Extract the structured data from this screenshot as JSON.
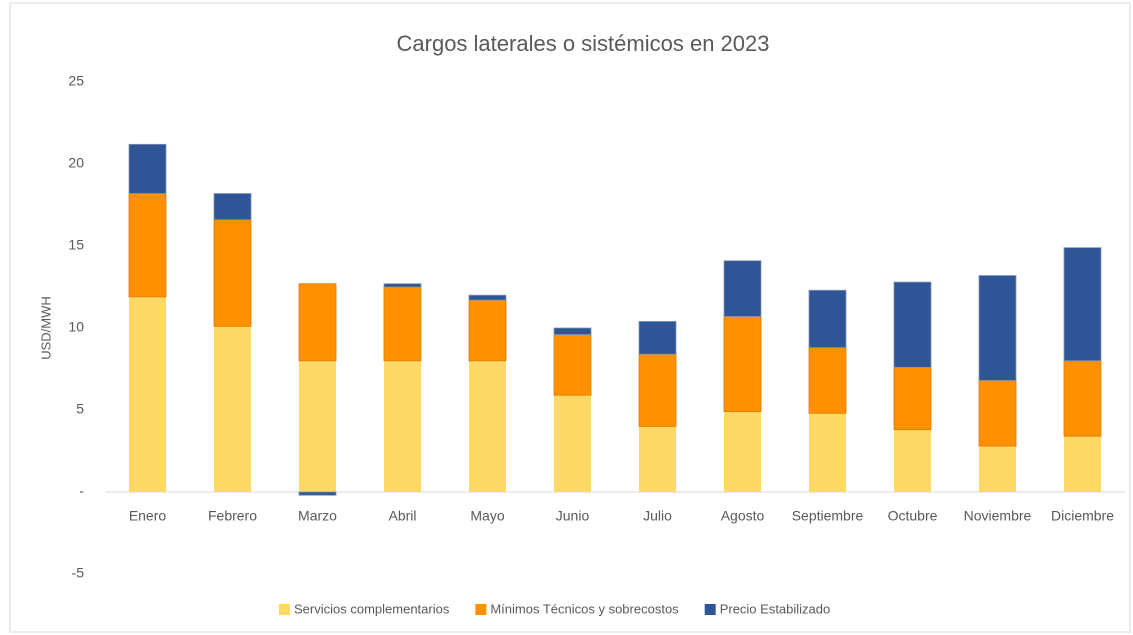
{
  "chart_data": {
    "type": "stacked_bar",
    "title": "Cargos laterales o sistémicos en 2023",
    "y_label": "USD/MWH",
    "categories": [
      "Enero",
      "Febrero",
      "Marzo",
      "Abril",
      "Mayo",
      "Junio",
      "Julio",
      "Agosto",
      "Septiembre",
      "Octubre",
      "Noviembre",
      "Diciembre"
    ],
    "series": [
      {
        "name": "Servicios complementarios",
        "color": "#ffd966",
        "values": [
          11.9,
          10.1,
          8.0,
          8.0,
          8.0,
          5.9,
          4.0,
          4.9,
          4.8,
          3.8,
          2.8,
          3.4
        ]
      },
      {
        "name": "Mínimos Técnicos y sobrecostos",
        "color": "#ff9000",
        "values": [
          6.3,
          6.5,
          4.7,
          4.5,
          3.7,
          3.7,
          4.4,
          5.8,
          4.0,
          3.8,
          4.0,
          4.6
        ]
      },
      {
        "name": "Precio Estabilizado",
        "color": "#2f5597",
        "values": [
          3.0,
          1.6,
          -0.2,
          0.2,
          0.3,
          0.4,
          2.0,
          3.4,
          3.5,
          5.2,
          6.4,
          6.9
        ]
      }
    ],
    "ylim": [
      -5,
      25
    ],
    "yticks": [
      -5,
      {
        "value": 0,
        "label": "-"
      },
      5,
      10,
      15,
      20,
      25
    ],
    "grid": false,
    "legend": "bottom"
  }
}
